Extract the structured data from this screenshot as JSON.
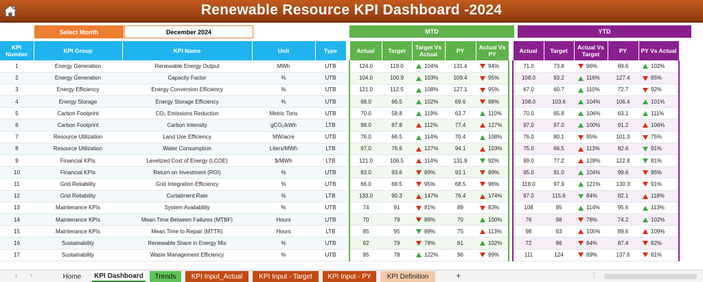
{
  "header": {
    "title": "Renewable Resource KPI Dashboard -2024",
    "home_icon": "home-icon"
  },
  "selector": {
    "label": "Select Month",
    "value": "December 2024"
  },
  "bands": {
    "mtd": "MTD",
    "ytd": "YTD"
  },
  "columns": {
    "kpi_number": "KPI Number",
    "kpi_group": "KPI Group",
    "kpi_name": "KPI Name",
    "unit": "Unit",
    "type": "Type",
    "mtd_actual": "Actual",
    "mtd_target": "Target",
    "mtd_tva": "Target Vs Actual",
    "mtd_py": "PY",
    "mtd_pva": "Actual Vs PY",
    "ytd_actual": "Actual",
    "ytd_target": "Target",
    "ytd_avt": "Actual Vs Target",
    "ytd_py": "PY",
    "ytd_pva": "PY Vs Actual"
  },
  "rows": [
    {
      "n": "1",
      "group": "Energy Generation",
      "name": "Renewable Energy Output",
      "unit": "MWh",
      "type": "UTB",
      "ma": "124.0",
      "mt": "119.0",
      "mtv": "104%",
      "mtv_a": "up-g",
      "mp": "131.4",
      "mpv": "94%",
      "mpv_a": "dn-r",
      "ya": "71.0",
      "yt": "73.8",
      "ytv": "96%",
      "ytv_a": "dn-r",
      "yp": "69.6",
      "ypv": "102%",
      "ypv_a": "up-g"
    },
    {
      "n": "2",
      "group": "Energy Generation",
      "name": "Capacity Factor",
      "unit": "%",
      "type": "UTB",
      "ma": "104.0",
      "mt": "100.9",
      "mtv": "103%",
      "mtv_a": "up-g",
      "mp": "109.4",
      "mpv": "95%",
      "mpv_a": "dn-r",
      "ya": "108.0",
      "yt": "93.2",
      "ytv": "116%",
      "ytv_a": "up-g",
      "yp": "127.4",
      "ypv": "85%",
      "ypv_a": "dn-r"
    },
    {
      "n": "3",
      "group": "Energy Efficiency",
      "name": "Energy Conversion Efficiency",
      "unit": "%",
      "type": "UTB",
      "ma": "121.0",
      "mt": "112.5",
      "mtv": "108%",
      "mtv_a": "up-g",
      "mp": "127.1",
      "mpv": "95%",
      "mpv_a": "dn-r",
      "ya": "67.0",
      "yt": "60.7",
      "ytv": "110%",
      "ytv_a": "up-g",
      "yp": "72.7",
      "ypv": "92%",
      "ypv_a": "dn-r"
    },
    {
      "n": "4",
      "group": "Energy Storage",
      "name": "Energy Storage Efficiency",
      "unit": "%",
      "type": "UTB",
      "ma": "68.0",
      "mt": "66.5",
      "mtv": "102%",
      "mtv_a": "up-g",
      "mp": "69.6",
      "mpv": "98%",
      "mpv_a": "dn-r",
      "ya": "108.0",
      "yt": "103.6",
      "ytv": "104%",
      "ytv_a": "up-g",
      "yp": "106.4",
      "ypv": "101%",
      "ypv_a": "up-g"
    },
    {
      "n": "5",
      "group": "Carbon Footprint",
      "name": "CO₂ Emissions Reduction",
      "unit": "Metric Tons",
      "type": "UTB",
      "ma": "70.0",
      "mt": "58.8",
      "mtv": "119%",
      "mtv_a": "up-g",
      "mp": "63.7",
      "mpv": "110%",
      "mpv_a": "up-g",
      "ya": "70.0",
      "yt": "65.8",
      "ytv": "106%",
      "ytv_a": "up-g",
      "yp": "63.1",
      "ypv": "111%",
      "ypv_a": "up-g"
    },
    {
      "n": "6",
      "group": "Carbon Footprint",
      "name": "Carbon Intensity",
      "unit": "gCO₂/kWh",
      "type": "LTB",
      "ma": "98.0",
      "mt": "87.8",
      "mtv": "112%",
      "mtv_a": "up-r",
      "mp": "77.4",
      "mpv": "127%",
      "mpv_a": "up-r",
      "ya": "97.0",
      "yt": "97.0",
      "ytv": "100%",
      "ytv_a": "up-g",
      "yp": "91.2",
      "ypv": "106%",
      "ypv_a": "up-r"
    },
    {
      "n": "7",
      "group": "Resource Utilization",
      "name": "Land Use Efficiency",
      "unit": "MW/acre",
      "type": "UTB",
      "ma": "76.0",
      "mt": "66.5",
      "mtv": "114%",
      "mtv_a": "up-g",
      "mp": "70.4",
      "mpv": "108%",
      "mpv_a": "up-g",
      "ya": "76.0",
      "yt": "80.1",
      "ytv": "95%",
      "ytv_a": "dn-r",
      "yp": "101.3",
      "ypv": "75%",
      "ypv_a": "dn-r"
    },
    {
      "n": "8",
      "group": "Resource Utilization",
      "name": "Water Consumption",
      "unit": "Liters/MWh",
      "type": "LTB",
      "ma": "97.0",
      "mt": "76.6",
      "mtv": "127%",
      "mtv_a": "up-r",
      "mp": "94.1",
      "mpv": "103%",
      "mpv_a": "up-r",
      "ya": "75.0",
      "yt": "66.5",
      "ytv": "113%",
      "ytv_a": "up-r",
      "yp": "82.6",
      "ypv": "91%",
      "ypv_a": "dn-g"
    },
    {
      "n": "9",
      "group": "Financial KPIs",
      "name": "Levelized Cost of Energy (LCOE)",
      "unit": "$/MWh",
      "type": "LTB",
      "ma": "121.0",
      "mt": "106.5",
      "mtv": "114%",
      "mtv_a": "up-r",
      "mp": "131.9",
      "mpv": "92%",
      "mpv_a": "dn-g",
      "ya": "99.0",
      "yt": "77.2",
      "ytv": "128%",
      "ytv_a": "up-r",
      "yp": "122.8",
      "ypv": "81%",
      "ypv_a": "dn-g"
    },
    {
      "n": "10",
      "group": "Financial KPIs",
      "name": "Return on Investment (ROI)",
      "unit": "%",
      "type": "UTB",
      "ma": "83.0",
      "mt": "93.6",
      "mtv": "89%",
      "mtv_a": "dn-r",
      "mp": "93.1",
      "mpv": "89%",
      "mpv_a": "dn-r",
      "ya": "95.0",
      "yt": "91.0",
      "ytv": "104%",
      "ytv_a": "up-g",
      "yp": "99.6",
      "ypv": "95%",
      "ypv_a": "dn-r"
    },
    {
      "n": "11",
      "group": "Grid Reliability",
      "name": "Grid Integration Efficiency",
      "unit": "%",
      "type": "UTB",
      "ma": "66.0",
      "mt": "69.5",
      "mtv": "95%",
      "mtv_a": "dn-r",
      "mp": "68.5",
      "mpv": "96%",
      "mpv_a": "dn-r",
      "ya": "118.0",
      "yt": "97.9",
      "ytv": "121%",
      "ytv_a": "up-g",
      "yp": "130.3",
      "ypv": "91%",
      "ypv_a": "dn-r"
    },
    {
      "n": "12",
      "group": "Grid Reliability",
      "name": "Curtailment Rate",
      "unit": "%",
      "type": "LTB",
      "ma": "133.0",
      "mt": "90.3",
      "mtv": "147%",
      "mtv_a": "up-r",
      "mp": "76.4",
      "mpv": "174%",
      "mpv_a": "up-r",
      "ya": "97.0",
      "yt": "115.6",
      "ytv": "84%",
      "ytv_a": "dn-g",
      "yp": "82.1",
      "ypv": "118%",
      "ypv_a": "up-r"
    },
    {
      "n": "13",
      "group": "Maintenance KPIs",
      "name": "System Availability",
      "unit": "%",
      "type": "UTB",
      "ma": "74",
      "mt": "91",
      "mtv": "81%",
      "mtv_a": "dn-r",
      "mp": "89",
      "mpv": "83%",
      "mpv_a": "dn-r",
      "ya": "108",
      "yt": "95",
      "ytv": "114%",
      "ytv_a": "up-g",
      "yp": "95.6",
      "ypv": "113%",
      "ypv_a": "up-g"
    },
    {
      "n": "14",
      "group": "Maintenance KPIs",
      "name": "Mean Time Between Failures (MTBF)",
      "unit": "Hours",
      "type": "UTB",
      "ma": "70",
      "mt": "79",
      "mtv": "89%",
      "mtv_a": "dn-r",
      "mp": "70",
      "mpv": "100%",
      "mpv_a": "up-g",
      "ya": "76",
      "yt": "98",
      "ytv": "78%",
      "ytv_a": "dn-r",
      "yp": "74.2",
      "ypv": "102%",
      "ypv_a": "up-g"
    },
    {
      "n": "15",
      "group": "Maintenance KPIs",
      "name": "Mean Time to Repair (MTTR)",
      "unit": "Hours",
      "type": "LTB",
      "ma": "85",
      "mt": "95",
      "mtv": "89%",
      "mtv_a": "dn-g",
      "mp": "75",
      "mpv": "113%",
      "mpv_a": "up-r",
      "ya": "98",
      "yt": "93",
      "ytv": "105%",
      "ytv_a": "up-r",
      "yp": "89.6",
      "ypv": "109%",
      "ypv_a": "up-r"
    },
    {
      "n": "16",
      "group": "Sustainability",
      "name": "Renewable Share in Energy Mix",
      "unit": "%",
      "type": "UTB",
      "ma": "62",
      "mt": "79",
      "mtv": "78%",
      "mtv_a": "dn-r",
      "mp": "61",
      "mpv": "102%",
      "mpv_a": "up-g",
      "ya": "72",
      "yt": "86",
      "ytv": "84%",
      "ytv_a": "dn-r",
      "yp": "87.4",
      "ypv": "82%",
      "ypv_a": "dn-r"
    },
    {
      "n": "17",
      "group": "Sustainability",
      "name": "Waste Management Efficiency",
      "unit": "%",
      "type": "UTB",
      "ma": "95",
      "mt": "78",
      "mtv": "122%",
      "mtv_a": "up-g",
      "mp": "96",
      "mpv": "99%",
      "mpv_a": "dn-r",
      "ya": "111",
      "yt": "124",
      "ytv": "89%",
      "ytv_a": "dn-r",
      "yp": "137.6",
      "ypv": "81%",
      "ypv_a": "dn-r"
    }
  ],
  "tabs": {
    "home": "Home",
    "dashboard": "KPI Dashboard",
    "trends": "Trends",
    "input_actual": "KPI Input_Actual",
    "input_target": "KPI Input - Target",
    "input_py": "KPI Input - PY",
    "definition": "KPI Definition",
    "add": "+"
  }
}
